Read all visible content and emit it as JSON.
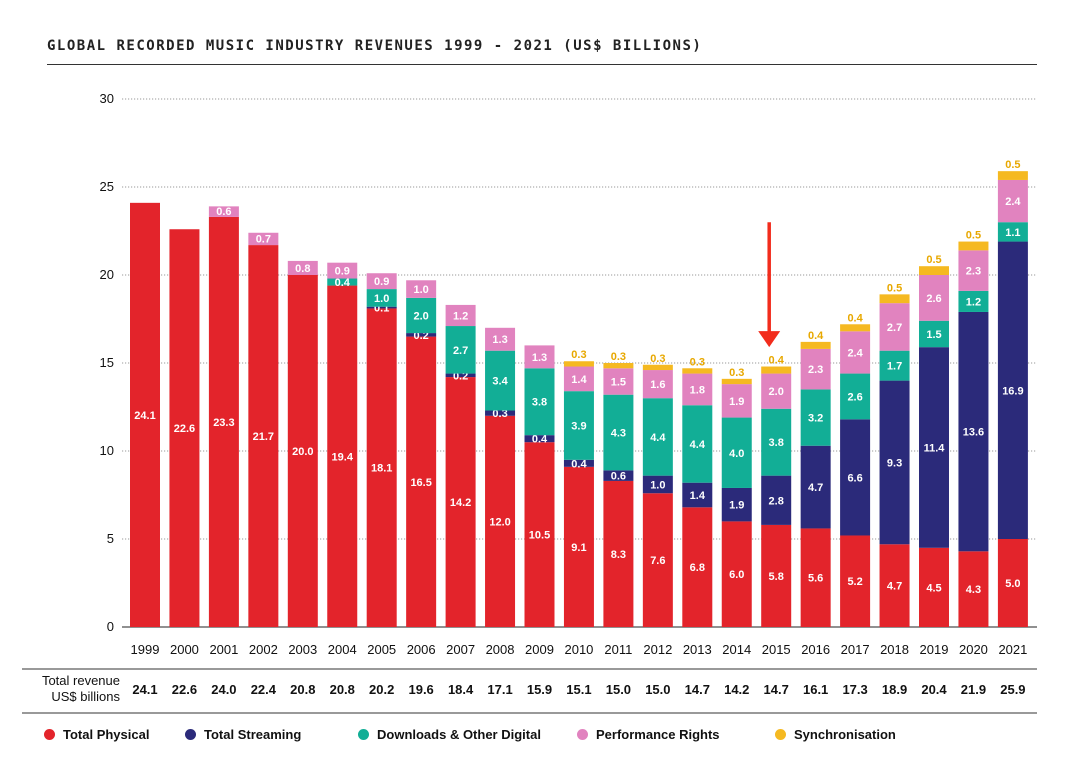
{
  "title": "GLOBAL RECORDED MUSIC INDUSTRY REVENUES 1999 - 2021 (US$ BILLIONS)",
  "revenue_row_label": "Total revenue US$ billions",
  "colors": {
    "physical": "#e3242b",
    "streaming": "#2b2a7a",
    "downloads": "#12ae96",
    "performance": "#e183bf",
    "sync": "#f5b921",
    "arrow": "#f22c1c"
  },
  "chart_data": {
    "type": "bar",
    "stacked": true,
    "title": "GLOBAL RECORDED MUSIC INDUSTRY REVENUES 1999 - 2021 (US$ BILLIONS)",
    "ylim": [
      0,
      30
    ],
    "yticks": [
      0,
      5,
      10,
      15,
      20,
      25,
      30
    ],
    "grid": true,
    "legend_position": "bottom",
    "categories": [
      "1999",
      "2000",
      "2001",
      "2002",
      "2003",
      "2004",
      "2005",
      "2006",
      "2007",
      "2008",
      "2009",
      "2010",
      "2011",
      "2012",
      "2013",
      "2014",
      "2015",
      "2016",
      "2017",
      "2018",
      "2019",
      "2020",
      "2021"
    ],
    "series": [
      {
        "name": "Total Physical",
        "key": "physical",
        "values": [
          24.1,
          22.6,
          23.3,
          21.7,
          20.0,
          19.4,
          18.1,
          16.5,
          14.2,
          12.0,
          10.5,
          9.1,
          8.3,
          7.6,
          6.8,
          6.0,
          5.8,
          5.6,
          5.2,
          4.7,
          4.5,
          4.3,
          5.0
        ],
        "labels": [
          "24.1",
          "22.6",
          "23.3",
          "21.7",
          "20.0",
          "19.4",
          "18.1",
          "16.5",
          "14.2",
          "12.0",
          "10.5",
          "9.1",
          "8.3",
          "7.6",
          "6.8",
          "6.0",
          "5.8",
          "5.6",
          "5.2",
          "4.7",
          "4.5",
          "4.3",
          "5.0"
        ]
      },
      {
        "name": "Total Streaming",
        "key": "streaming",
        "values": [
          null,
          null,
          null,
          null,
          null,
          null,
          0.1,
          0.2,
          0.2,
          0.3,
          0.4,
          0.4,
          0.6,
          1.0,
          1.4,
          1.9,
          2.8,
          4.7,
          6.6,
          9.3,
          11.4,
          13.6,
          16.9
        ],
        "labels": [
          "",
          "",
          "",
          "",
          "",
          "",
          "0.1",
          "0.2",
          "0.2",
          "0.3",
          "0.4",
          "0.4",
          "0.6",
          "1.0",
          "1.4",
          "1.9",
          "2.8",
          "4.7",
          "6.6",
          "9.3",
          "11.4",
          "13.6",
          "16.9"
        ]
      },
      {
        "name": "Downloads & Other Digital",
        "key": "downloads",
        "values": [
          null,
          null,
          null,
          null,
          null,
          0.4,
          1.0,
          2.0,
          2.7,
          3.4,
          3.8,
          3.9,
          4.3,
          4.4,
          4.4,
          4.0,
          3.8,
          3.2,
          2.6,
          1.7,
          1.5,
          1.2,
          1.1
        ],
        "labels": [
          "",
          "",
          "",
          "",
          "",
          "0.4",
          "1.0",
          "2.0",
          "2.7",
          "3.4",
          "3.8",
          "3.9",
          "4.3",
          "4.4",
          "4.4",
          "4.0",
          "3.8",
          "3.2",
          "2.6",
          "1.7",
          "1.5",
          "1.2",
          "1.1"
        ]
      },
      {
        "name": "Performance Rights",
        "key": "performance",
        "values": [
          null,
          null,
          0.6,
          0.7,
          0.8,
          0.9,
          0.9,
          1.0,
          1.2,
          1.3,
          1.3,
          1.4,
          1.5,
          1.6,
          1.8,
          1.9,
          2.0,
          2.3,
          2.4,
          2.7,
          2.6,
          2.3,
          2.4
        ],
        "labels": [
          "",
          "",
          "0.6",
          "0.7",
          "0.8",
          "0.9",
          "0.9",
          "1.0",
          "1.2",
          "1.3",
          "1.3",
          "1.4",
          "1.5",
          "1.6",
          "1.8",
          "1.9",
          "2.0",
          "2.3",
          "2.4",
          "2.7",
          "2.6",
          "2.3",
          "2.4"
        ]
      },
      {
        "name": "Synchronisation",
        "key": "sync",
        "values": [
          null,
          null,
          null,
          null,
          null,
          null,
          null,
          null,
          null,
          null,
          null,
          0.3,
          0.3,
          0.3,
          0.3,
          0.3,
          0.4,
          0.4,
          0.4,
          0.5,
          0.5,
          0.5,
          0.5
        ],
        "labels": [
          "",
          "",
          "",
          "",
          "",
          "",
          "",
          "",
          "",
          "",
          "",
          "0.3",
          "0.3",
          "0.3",
          "0.3",
          "0.3",
          "0.4",
          "0.4",
          "0.4",
          "0.5",
          "0.5",
          "0.5",
          "0.5"
        ]
      }
    ],
    "totals": [
      "24.1",
      "22.6",
      "24.0",
      "22.4",
      "20.8",
      "20.8",
      "20.2",
      "19.6",
      "18.4",
      "17.1",
      "15.9",
      "15.1",
      "15.0",
      "15.0",
      "14.7",
      "14.2",
      "14.7",
      "16.1",
      "17.3",
      "18.9",
      "20.4",
      "21.9",
      "25.9"
    ],
    "annotation": {
      "type": "arrow",
      "category": "2015",
      "y_from": 23.0,
      "y_to": 15.9
    }
  }
}
